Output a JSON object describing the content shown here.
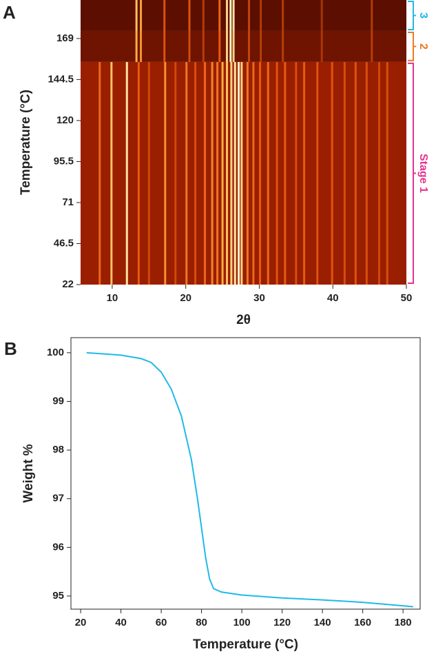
{
  "chart_data": [
    {
      "type": "heatmap",
      "panel": "A",
      "xlabel": "2θ",
      "ylabel": "Temperature (°C)",
      "xlim": [
        5.7,
        50
      ],
      "xticks": [
        10,
        20,
        30,
        40,
        50
      ],
      "ylim": [
        22,
        192
      ],
      "yticks": [
        22,
        46.5,
        71,
        95.5,
        120,
        144.5,
        169
      ],
      "stages": [
        {
          "name": "Stage 1",
          "color": "#e8308c",
          "background": "#9a1e00",
          "temps": [
            22,
            155
          ],
          "peaks": [
            8.3,
            9.9,
            12,
            13.6,
            15,
            17.2,
            18.6,
            20.1,
            21.3,
            22.6,
            23.6,
            24.3,
            25,
            25.6,
            26.2,
            26.7,
            27.2,
            27.6,
            28.4,
            29.2,
            30.1,
            31.2,
            32.4,
            33.5,
            35,
            36.1,
            37.9,
            39.9,
            41.6,
            43.1,
            44.6,
            46.3,
            47.4
          ],
          "intensities": [
            0.55,
            0.85,
            0.95,
            0.5,
            0.35,
            0.7,
            0.35,
            0.6,
            0.4,
            0.55,
            0.65,
            0.6,
            0.8,
            0.85,
            0.9,
            0.95,
            1,
            0.9,
            0.6,
            0.55,
            0.5,
            0.55,
            0.45,
            0.5,
            0.4,
            0.5,
            0.45,
            0.45,
            0.4,
            0.45,
            0.4,
            0.35,
            0.4
          ]
        },
        {
          "name": "2",
          "color": "#f07820",
          "background": "#6e1400",
          "temps": [
            155,
            173.5
          ],
          "peaks": [
            13.3,
            13.9,
            17.1,
            20.5,
            22.4,
            24.6,
            25.6,
            26.1,
            26.5,
            28.6,
            30.2,
            33.2,
            38.5,
            45.3
          ],
          "intensities": [
            0.8,
            0.7,
            0.45,
            0.4,
            0.3,
            0.5,
            0.9,
            1,
            0.9,
            0.35,
            0.3,
            0.3,
            0.25,
            0.3
          ]
        },
        {
          "name": "3",
          "color": "#20b8e8",
          "background": "#5c0f00",
          "temps": [
            173.5,
            192
          ],
          "peaks": [
            13.3,
            13.9,
            17.1,
            20.5,
            22.4,
            24.6,
            25.6,
            26.1,
            26.5,
            28.6,
            30.2,
            33.2,
            38.5,
            45.3
          ],
          "intensities": [
            0.85,
            0.75,
            0.45,
            0.45,
            0.3,
            0.55,
            0.9,
            1,
            0.95,
            0.35,
            0.3,
            0.3,
            0.25,
            0.3
          ]
        }
      ]
    },
    {
      "type": "line",
      "panel": "B",
      "xlabel": "Temperature (°C)",
      "ylabel": "Weight %",
      "xlim": [
        15.2,
        188.5
      ],
      "xticks": [
        20,
        40,
        60,
        80,
        100,
        120,
        140,
        160,
        180
      ],
      "ylim": [
        94.73,
        100.31
      ],
      "yticks": [
        95,
        96,
        97,
        98,
        99,
        100
      ],
      "series": [
        {
          "color": "#1fb9e8",
          "x": [
            23,
            30,
            40,
            50,
            55,
            60,
            65,
            70,
            75,
            78,
            80,
            82,
            84,
            86,
            90,
            100,
            120,
            140,
            160,
            180,
            185
          ],
          "values": [
            100.0,
            99.98,
            99.95,
            99.88,
            99.8,
            99.6,
            99.25,
            98.7,
            97.8,
            97.0,
            96.4,
            95.8,
            95.35,
            95.15,
            95.08,
            95.02,
            94.96,
            94.92,
            94.87,
            94.8,
            94.78
          ]
        }
      ]
    }
  ]
}
